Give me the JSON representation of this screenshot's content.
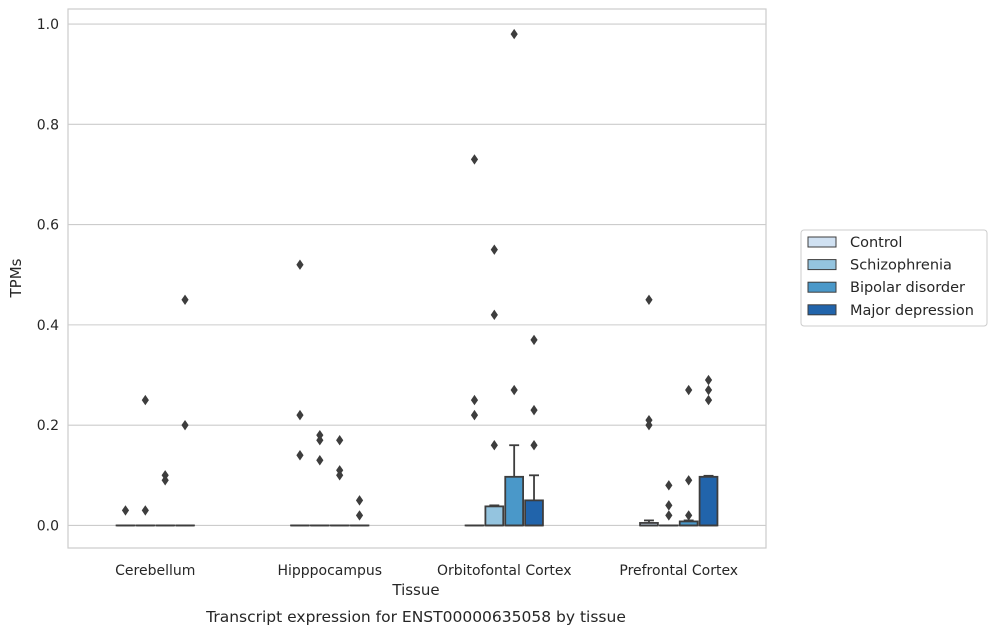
{
  "chart_data": {
    "type": "boxplot",
    "caption": "Transcript expression for ENST00000635058 by tissue",
    "xlabel": "Tissue",
    "ylabel": "TPMs",
    "ylim": [
      -0.045,
      1.03
    ],
    "yticks": [
      0.0,
      0.2,
      0.4,
      0.6,
      0.8,
      1.0
    ],
    "ytick_labels": [
      "0.0",
      "0.2",
      "0.4",
      "0.6",
      "0.8",
      "1.0"
    ],
    "grid": true,
    "legend_position": "right",
    "categories": [
      "Cerebellum",
      "Hipppocampus",
      "Orbitofontal Cortex",
      "Prefrontal Cortex"
    ],
    "series": [
      {
        "name": "Control",
        "color": "#d0e1f2",
        "boxes": [
          {
            "q1": 0,
            "median": 0,
            "q3": 0,
            "whisker_low": 0,
            "whisker_high": 0,
            "outliers": [
              0.03
            ]
          },
          {
            "q1": 0,
            "median": 0,
            "q3": 0,
            "whisker_low": 0,
            "whisker_high": 0,
            "outliers": [
              0.52,
              0.22,
              0.14
            ]
          },
          {
            "q1": 0,
            "median": 0,
            "q3": 0,
            "whisker_low": 0,
            "whisker_high": 0,
            "outliers": [
              0.73,
              0.25,
              0.22
            ]
          },
          {
            "q1": 0,
            "median": 0,
            "q3": 0.005,
            "whisker_low": 0,
            "whisker_high": 0.01,
            "outliers": [
              0.45,
              0.21,
              0.2
            ]
          }
        ]
      },
      {
        "name": "Schizophrenia",
        "color": "#94c4df",
        "boxes": [
          {
            "q1": 0,
            "median": 0,
            "q3": 0,
            "whisker_low": 0,
            "whisker_high": 0,
            "outliers": [
              0.25,
              0.03
            ]
          },
          {
            "q1": 0,
            "median": 0,
            "q3": 0,
            "whisker_low": 0,
            "whisker_high": 0,
            "outliers": [
              0.18,
              0.17,
              0.13
            ]
          },
          {
            "q1": 0,
            "median": 0,
            "q3": 0.038,
            "whisker_low": 0,
            "whisker_high": 0.04,
            "outliers": [
              0.55,
              0.42,
              0.16
            ]
          },
          {
            "q1": 0,
            "median": 0,
            "q3": 0,
            "whisker_low": 0,
            "whisker_high": 0,
            "outliers": [
              0.08,
              0.04,
              0.02
            ]
          }
        ]
      },
      {
        "name": "Bipolar disorder",
        "color": "#4a98c9",
        "boxes": [
          {
            "q1": 0,
            "median": 0,
            "q3": 0,
            "whisker_low": 0,
            "whisker_high": 0,
            "outliers": [
              0.1,
              0.09
            ]
          },
          {
            "q1": 0,
            "median": 0,
            "q3": 0,
            "whisker_low": 0,
            "whisker_high": 0,
            "outliers": [
              0.17,
              0.11,
              0.1
            ]
          },
          {
            "q1": 0,
            "median": 0,
            "q3": 0.097,
            "whisker_low": 0,
            "whisker_high": 0.16,
            "outliers": [
              0.98,
              0.27
            ]
          },
          {
            "q1": 0,
            "median": 0,
            "q3": 0.008,
            "whisker_low": 0,
            "whisker_high": 0.01,
            "outliers": [
              0.27,
              0.09,
              0.02
            ]
          }
        ]
      },
      {
        "name": "Major depression",
        "color": "#2164ab",
        "boxes": [
          {
            "q1": 0,
            "median": 0,
            "q3": 0,
            "whisker_low": 0,
            "whisker_high": 0,
            "outliers": [
              0.45,
              0.2
            ]
          },
          {
            "q1": 0,
            "median": 0,
            "q3": 0,
            "whisker_low": 0,
            "whisker_high": 0,
            "outliers": [
              0.05,
              0.02
            ]
          },
          {
            "q1": 0,
            "median": 0,
            "q3": 0.05,
            "whisker_low": 0,
            "whisker_high": 0.1,
            "outliers": [
              0.37,
              0.23,
              0.16
            ]
          },
          {
            "q1": 0,
            "median": 0,
            "q3": 0.097,
            "whisker_low": 0,
            "whisker_high": 0.099,
            "outliers": [
              0.29,
              0.27,
              0.25
            ]
          }
        ]
      }
    ]
  }
}
